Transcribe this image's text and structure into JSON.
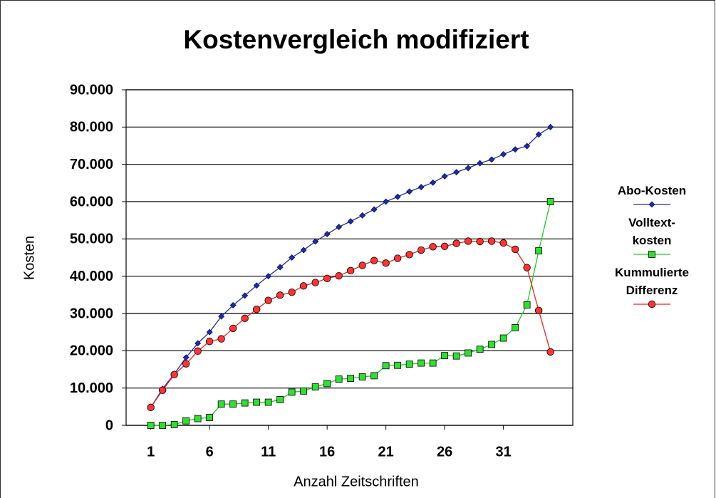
{
  "chart_data": {
    "type": "line",
    "title": "Kostenvergleich modifiziert",
    "xlabel": "Anzahl Zeitschriften",
    "ylabel": "Kosten",
    "x": [
      1,
      2,
      3,
      4,
      5,
      6,
      7,
      8,
      9,
      10,
      11,
      12,
      13,
      14,
      15,
      16,
      17,
      18,
      19,
      20,
      21,
      22,
      23,
      24,
      25,
      26,
      27,
      28,
      29,
      30,
      31,
      32,
      33,
      34,
      35
    ],
    "xlim": [
      -1.1,
      36.9
    ],
    "xticks": [
      1,
      6,
      11,
      16,
      21,
      26,
      31
    ],
    "ylim": [
      0,
      90000
    ],
    "yticks": [
      0,
      {
        "value": 10000,
        "label": "10.000"
      },
      {
        "value": 20000,
        "label": "20.000"
      },
      {
        "value": 30000,
        "label": "30.000"
      },
      {
        "value": 40000,
        "label": "40.000"
      },
      {
        "value": 50000,
        "label": "50.000"
      },
      {
        "value": 60000,
        "label": "60.000"
      },
      {
        "value": 70000,
        "label": "70.000"
      },
      {
        "value": 80000,
        "label": "80.000"
      },
      {
        "value": 90000,
        "label": "90.000"
      }
    ],
    "grid": true,
    "legend": "right",
    "series": [
      {
        "name": "Abo-Kosten",
        "color": "#1f2fa8",
        "marker": "diamond",
        "values": [
          4800,
          9800,
          13800,
          18200,
          22000,
          25000,
          29200,
          32200,
          34800,
          37500,
          40000,
          42400,
          45000,
          47000,
          49300,
          51300,
          53200,
          54700,
          56300,
          57900,
          60000,
          61300,
          62700,
          63900,
          65100,
          66800,
          67900,
          69000,
          70300,
          71300,
          72700,
          74000,
          74900,
          78000,
          80000
        ]
      },
      {
        "name": "Volltext-kosten",
        "color": "#22cc22",
        "marker": "square",
        "values": [
          0,
          0,
          200,
          1200,
          1800,
          2100,
          5700,
          5700,
          6000,
          6200,
          6200,
          6900,
          8900,
          9200,
          10300,
          11200,
          12400,
          12600,
          13000,
          13300,
          16000,
          16100,
          16400,
          16700,
          16700,
          18700,
          18600,
          19400,
          20400,
          21700,
          23400,
          26200,
          32300,
          46800,
          60000
        ]
      },
      {
        "name": "Kummulierte Differenz",
        "color": "#ee2222",
        "marker": "circle",
        "values": [
          4800,
          9400,
          13600,
          16500,
          19900,
          22500,
          23200,
          26000,
          28700,
          31100,
          33500,
          34900,
          35700,
          37400,
          38300,
          39400,
          40100,
          41500,
          42900,
          44200,
          43500,
          44800,
          45800,
          47000,
          47900,
          48000,
          48800,
          49400,
          49300,
          49400,
          48900,
          47200,
          42300,
          30800,
          19700
        ]
      }
    ]
  }
}
